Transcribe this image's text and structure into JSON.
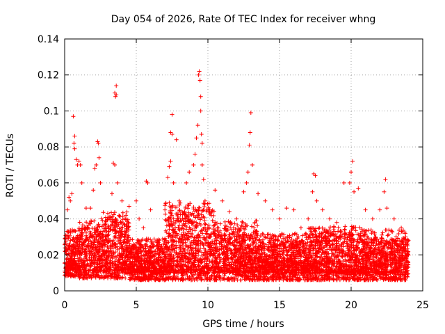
{
  "chart_data": {
    "type": "scatter",
    "title": "Day 054 of 2026, Rate Of TEC Index for receiver whng",
    "xlabel": "GPS time / hours",
    "ylabel": "ROTI / TECUs",
    "xlim": [
      0,
      25
    ],
    "ylim": [
      0,
      0.14
    ],
    "x_ticks": [
      0,
      5,
      10,
      15,
      20,
      25
    ],
    "x_tick_labels": [
      "0",
      "5",
      "10",
      "15",
      "20",
      "25"
    ],
    "y_ticks": [
      0,
      0.02,
      0.04,
      0.06,
      0.08,
      0.1,
      0.12,
      0.14
    ],
    "y_tick_labels": [
      "0",
      "0.02",
      "0.04",
      "0.06",
      "0.08",
      "0.1",
      "0.12",
      "0.14"
    ],
    "grid": true,
    "marker": "+",
    "series": [
      {
        "name": "ROTI",
        "color": "#ff0000",
        "points": [
          [
            0.1,
            0.021
          ],
          [
            0.2,
            0.045
          ],
          [
            0.3,
            0.052
          ],
          [
            0.4,
            0.05
          ],
          [
            0.5,
            0.054
          ],
          [
            0.6,
            0.097
          ],
          [
            0.65,
            0.082
          ],
          [
            0.7,
            0.086
          ],
          [
            0.7,
            0.079
          ],
          [
            0.8,
            0.073
          ],
          [
            0.9,
            0.07
          ],
          [
            1.0,
            0.072
          ],
          [
            1.1,
            0.07
          ],
          [
            1.2,
            0.06
          ],
          [
            1.5,
            0.046
          ],
          [
            1.8,
            0.046
          ],
          [
            2.0,
            0.056
          ],
          [
            2.1,
            0.068
          ],
          [
            2.2,
            0.07
          ],
          [
            2.3,
            0.083
          ],
          [
            2.35,
            0.082
          ],
          [
            2.4,
            0.074
          ],
          [
            2.5,
            0.06
          ],
          [
            3.0,
            0.04
          ],
          [
            3.3,
            0.054
          ],
          [
            3.4,
            0.071
          ],
          [
            3.5,
            0.07
          ],
          [
            3.5,
            0.11
          ],
          [
            3.55,
            0.108
          ],
          [
            3.6,
            0.114
          ],
          [
            3.6,
            0.109
          ],
          [
            3.7,
            0.06
          ],
          [
            4.0,
            0.05
          ],
          [
            4.5,
            0.047
          ],
          [
            5.0,
            0.05
          ],
          [
            5.2,
            0.04
          ],
          [
            5.5,
            0.035
          ],
          [
            5.7,
            0.061
          ],
          [
            5.8,
            0.06
          ],
          [
            6.0,
            0.045
          ],
          [
            7.0,
            0.045
          ],
          [
            7.2,
            0.063
          ],
          [
            7.3,
            0.069
          ],
          [
            7.4,
            0.072
          ],
          [
            7.4,
            0.088
          ],
          [
            7.5,
            0.098
          ],
          [
            7.5,
            0.087
          ],
          [
            7.6,
            0.06
          ],
          [
            7.8,
            0.084
          ],
          [
            8.0,
            0.05
          ],
          [
            8.5,
            0.06
          ],
          [
            8.7,
            0.066
          ],
          [
            9.0,
            0.07
          ],
          [
            9.1,
            0.076
          ],
          [
            9.2,
            0.085
          ],
          [
            9.3,
            0.092
          ],
          [
            9.35,
            0.12
          ],
          [
            9.4,
            0.122
          ],
          [
            9.45,
            0.117
          ],
          [
            9.5,
            0.108
          ],
          [
            9.5,
            0.1
          ],
          [
            9.55,
            0.087
          ],
          [
            9.6,
            0.082
          ],
          [
            9.6,
            0.07
          ],
          [
            9.7,
            0.062
          ],
          [
            9.8,
            0.05
          ],
          [
            10.0,
            0.045
          ],
          [
            10.5,
            0.056
          ],
          [
            11.0,
            0.05
          ],
          [
            11.5,
            0.044
          ],
          [
            12.0,
            0.04
          ],
          [
            12.5,
            0.055
          ],
          [
            12.7,
            0.06
          ],
          [
            12.8,
            0.066
          ],
          [
            12.9,
            0.081
          ],
          [
            12.95,
            0.088
          ],
          [
            13.0,
            0.099
          ],
          [
            13.1,
            0.07
          ],
          [
            13.5,
            0.054
          ],
          [
            14.0,
            0.05
          ],
          [
            14.5,
            0.045
          ],
          [
            15.0,
            0.04
          ],
          [
            15.5,
            0.046
          ],
          [
            16.0,
            0.045
          ],
          [
            16.5,
            0.035
          ],
          [
            17.0,
            0.04
          ],
          [
            17.3,
            0.055
          ],
          [
            17.4,
            0.065
          ],
          [
            17.5,
            0.064
          ],
          [
            17.6,
            0.05
          ],
          [
            18.0,
            0.045
          ],
          [
            18.5,
            0.04
          ],
          [
            19.0,
            0.038
          ],
          [
            19.5,
            0.06
          ],
          [
            19.9,
            0.06
          ],
          [
            20.0,
            0.066
          ],
          [
            20.1,
            0.072
          ],
          [
            20.2,
            0.055
          ],
          [
            20.5,
            0.057
          ],
          [
            21.0,
            0.045
          ],
          [
            21.5,
            0.04
          ],
          [
            22.0,
            0.045
          ],
          [
            22.3,
            0.055
          ],
          [
            22.4,
            0.062
          ],
          [
            22.5,
            0.046
          ],
          [
            23.0,
            0.04
          ],
          [
            23.5,
            0.035
          ],
          [
            23.8,
            0.03
          ],
          [
            24.0,
            0.028
          ]
        ],
        "baseline_band": [
          {
            "x0": 0.0,
            "x1": 1.0,
            "low": 0.008,
            "high": 0.03
          },
          {
            "x0": 1.0,
            "x1": 2.5,
            "low": 0.007,
            "high": 0.035
          },
          {
            "x0": 2.5,
            "x1": 4.5,
            "low": 0.007,
            "high": 0.04
          },
          {
            "x0": 4.5,
            "x1": 7.0,
            "low": 0.006,
            "high": 0.025
          },
          {
            "x0": 7.0,
            "x1": 10.5,
            "low": 0.006,
            "high": 0.045
          },
          {
            "x0": 10.5,
            "x1": 13.5,
            "low": 0.006,
            "high": 0.035
          },
          {
            "x0": 13.5,
            "x1": 17.0,
            "low": 0.006,
            "high": 0.028
          },
          {
            "x0": 17.0,
            "x1": 21.0,
            "low": 0.006,
            "high": 0.032
          },
          {
            "x0": 21.0,
            "x1": 24.0,
            "low": 0.006,
            "high": 0.03
          }
        ]
      }
    ]
  }
}
